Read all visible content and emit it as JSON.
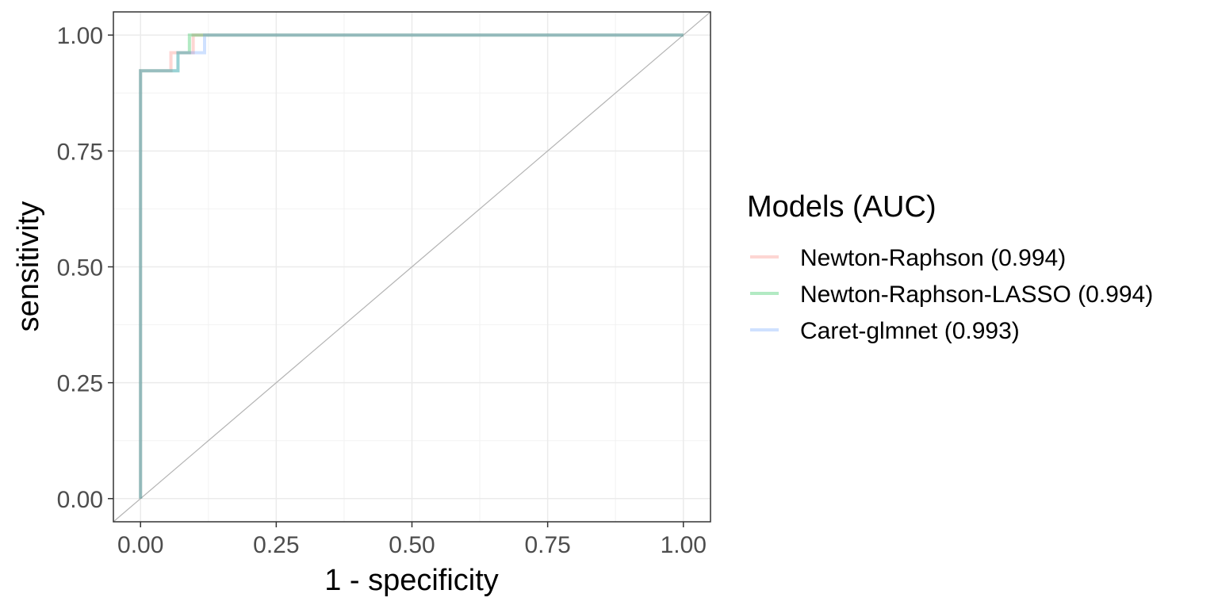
{
  "chart_data": {
    "type": "line",
    "xlabel": "1 - specificity",
    "ylabel": "sensitivity",
    "xlim": [
      -0.05,
      1.05
    ],
    "ylim": [
      -0.05,
      1.05
    ],
    "x_ticks": [
      "0.00",
      "0.25",
      "0.50",
      "0.75",
      "1.00"
    ],
    "y_ticks": [
      "0.00",
      "0.25",
      "0.50",
      "0.75",
      "1.00"
    ],
    "grid": true,
    "reference_line": {
      "x": [
        0,
        1
      ],
      "y": [
        0,
        1
      ],
      "color": "#b3b3b3"
    },
    "legend": {
      "title": "Models (AUC)",
      "position": "right"
    },
    "series": [
      {
        "name": "Newton-Raphson (0.994)",
        "color": "#f8766d",
        "x": [
          0,
          0,
          0.056,
          0.056,
          0.097,
          0.097,
          1.0
        ],
        "y": [
          0,
          0.923,
          0.923,
          0.962,
          0.962,
          1.0,
          1.0
        ]
      },
      {
        "name": "Newton-Raphson-LASSO (0.994)",
        "color": "#00ba38",
        "x": [
          0,
          0,
          0.069,
          0.069,
          0.09,
          0.09,
          1.0
        ],
        "y": [
          0,
          0.923,
          0.923,
          0.962,
          0.962,
          1.0,
          1.0
        ]
      },
      {
        "name": "Caret-glmnet (0.993)",
        "color": "#619cff",
        "x": [
          0,
          0,
          0.069,
          0.069,
          0.118,
          0.118,
          1.0
        ],
        "y": [
          0,
          0.923,
          0.923,
          0.962,
          0.962,
          1.0,
          1.0
        ]
      }
    ]
  }
}
